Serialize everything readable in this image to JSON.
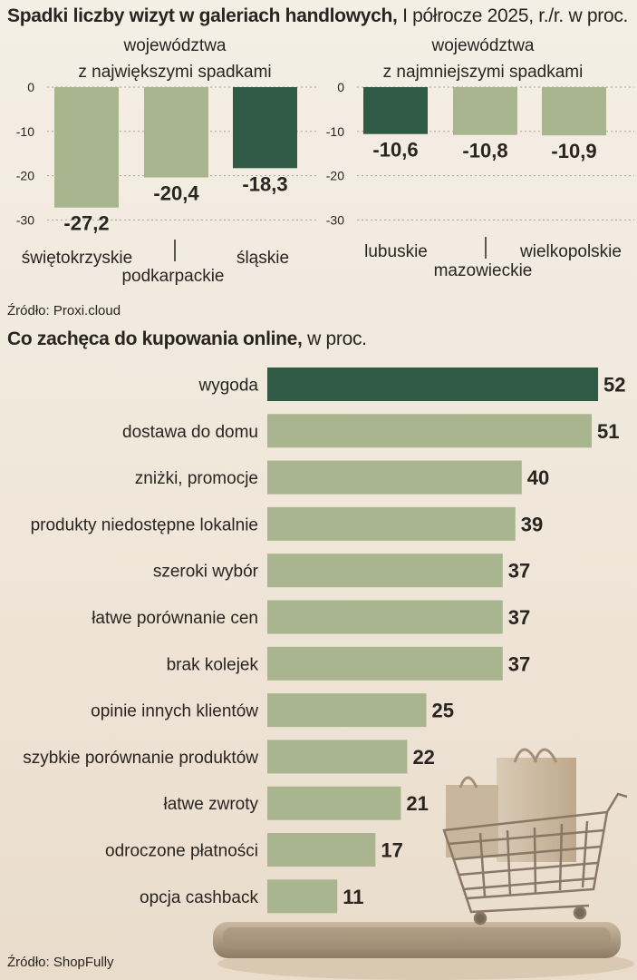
{
  "section1": {
    "title_bold": "Spadki liczby wizyt w galeriach handlowych,",
    "title_rest": " I półrocze 2025, r./r. w proc.",
    "source": "Źródło: Proxi.cloud"
  },
  "section2": {
    "title_bold": "Co zachęca do kupowania online,",
    "title_rest": " w proc.",
    "source": "Źródło: ShopFully"
  },
  "colors": {
    "bar_light": "#a8b58f",
    "bar_dark": "#2f5a45",
    "text": "#2a2420",
    "grid": "#a9a096"
  },
  "chart_data": [
    {
      "type": "bar",
      "title": "województwa z największymi spadkami",
      "categories": [
        "świętokrzyskie",
        "podkarpackie",
        "śląskie"
      ],
      "values": [
        -27.2,
        -20.4,
        -18.3
      ],
      "value_labels": [
        "-27,2",
        "-20,4",
        "-18,3"
      ],
      "highlight": [
        false,
        false,
        true
      ],
      "yticks": [
        "0",
        "-10",
        "-20",
        "-30"
      ],
      "ylim": [
        -30,
        0
      ],
      "grid": true
    },
    {
      "type": "bar",
      "title": "województwa z najmniejszymi spadkami",
      "categories": [
        "lubuskie",
        "mazowieckie",
        "wielkopolskie"
      ],
      "values": [
        -10.6,
        -10.8,
        -10.9
      ],
      "value_labels": [
        "-10,6",
        "-10,8",
        "-10,9"
      ],
      "highlight": [
        true,
        false,
        false
      ],
      "yticks": [
        "0",
        "-10",
        "-20",
        "-30"
      ],
      "ylim": [
        -30,
        0
      ],
      "grid": true
    },
    {
      "type": "bar",
      "orientation": "horizontal",
      "categories": [
        "wygoda",
        "dostawa do domu",
        "zniżki, promocje",
        "produkty niedostępne lokalnie",
        "szeroki wybór",
        "łatwe porównanie cen",
        "brak kolejek",
        "opinie innych klientów",
        "szybkie porównanie produktów",
        "łatwe zwroty",
        "odroczone płatności",
        "opcja cashback"
      ],
      "values": [
        52,
        51,
        40,
        39,
        37,
        37,
        37,
        25,
        22,
        21,
        17,
        11
      ],
      "highlight": [
        true,
        false,
        false,
        false,
        false,
        false,
        false,
        false,
        false,
        false,
        false,
        false
      ],
      "xlim": [
        0,
        52
      ]
    }
  ]
}
